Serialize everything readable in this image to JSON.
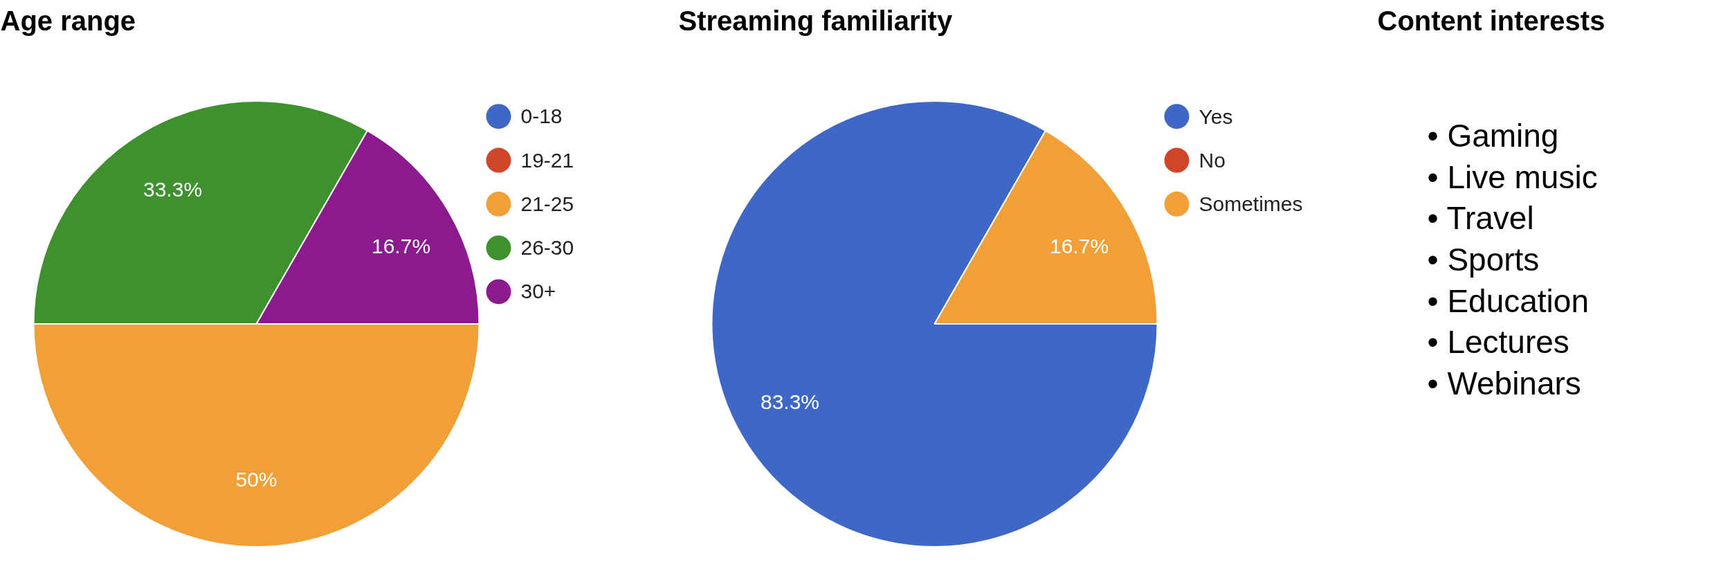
{
  "chart_data": [
    {
      "type": "pie",
      "title": "Age range",
      "categories": [
        "0-18",
        "19-21",
        "21-25",
        "26-30",
        "30+"
      ],
      "values": [
        0,
        0,
        50,
        33.3,
        16.7
      ],
      "value_labels": [
        null,
        null,
        "50%",
        "33.3%",
        "16.7%"
      ],
      "colors": [
        "#3f67c6",
        "#d0452a",
        "#f1a038",
        "#3f9130",
        "#8b1a8f"
      ],
      "legend": "right"
    },
    {
      "type": "pie",
      "title": "Streaming familiarity",
      "categories": [
        "Yes",
        "No",
        "Sometimes"
      ],
      "values": [
        83.3,
        0,
        16.7
      ],
      "value_labels": [
        "83.3%",
        null,
        "16.7%"
      ],
      "colors": [
        "#3f67c6",
        "#d0452a",
        "#f1a038"
      ],
      "legend": "right"
    },
    {
      "type": "other",
      "title": "Content interests",
      "annotations": [
        "•  Gaming",
        "•  Live music",
        "•  Travel",
        "•  Sports",
        "•  Education",
        "•  Lectures",
        "•  Webinars"
      ]
    }
  ]
}
